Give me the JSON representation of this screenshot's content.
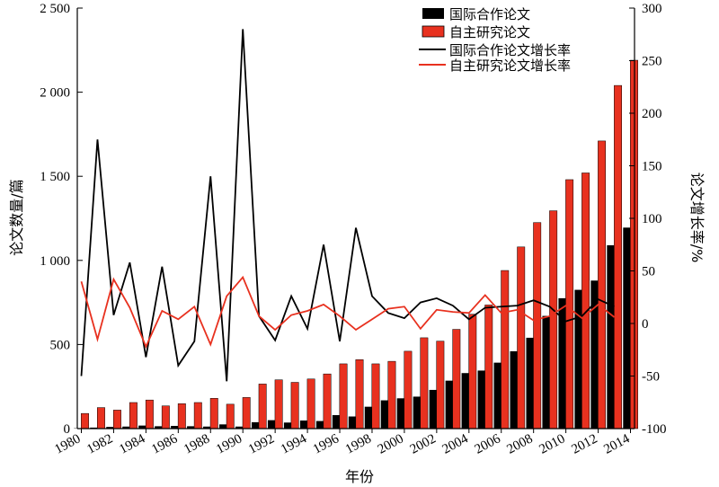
{
  "chart_data": {
    "type": "bar",
    "categories": [
      1980,
      1981,
      1982,
      1983,
      1984,
      1985,
      1986,
      1987,
      1988,
      1989,
      1990,
      1991,
      1992,
      1993,
      1994,
      1995,
      1996,
      1997,
      1998,
      1999,
      2000,
      2001,
      2002,
      2003,
      2004,
      2005,
      2006,
      2007,
      2008,
      2009,
      2010,
      2011,
      2012,
      2013,
      2014
    ],
    "x_tick_labels": [
      "1980",
      "1982",
      "1984",
      "1986",
      "1988",
      "1990",
      "1992",
      "1994",
      "1996",
      "1998",
      "2000",
      "2002",
      "2004",
      "2006",
      "2008",
      "2010",
      "2012",
      "2014"
    ],
    "xlabel": "年份",
    "ylabel_left": "论文数量/篇",
    "ylabel_right": "论文增长率/%",
    "ylim_left": [
      0,
      2500
    ],
    "ylim_right": [
      -100,
      300
    ],
    "y_left_ticks": [
      0,
      500,
      1000,
      1500,
      2000,
      2500
    ],
    "y_left_tick_labels": [
      "0",
      "500",
      "1 000",
      "1 500",
      "2 000",
      "2 500"
    ],
    "y_right_ticks": [
      -100,
      -50,
      0,
      50,
      100,
      150,
      200,
      250,
      300
    ],
    "y_right_tick_labels": [
      "-100",
      "-50",
      "0",
      "50",
      "100",
      "150",
      "200",
      "250",
      "300"
    ],
    "legend_position": "top-right",
    "series": [
      {
        "name": "国际合作论文",
        "kind": "bar",
        "axis": "left",
        "color": "#000000",
        "values": [
          2,
          6,
          10,
          12,
          18,
          14,
          16,
          14,
          12,
          25,
          12,
          38,
          50,
          36,
          48,
          45,
          80,
          72,
          130,
          168,
          180,
          190,
          230,
          285,
          330,
          345,
          392,
          460,
          540,
          670,
          775,
          825,
          880,
          1090,
          1195
        ]
      },
      {
        "name": "自主研究论文",
        "kind": "bar",
        "axis": "left",
        "color": "#e8311f",
        "values": [
          90,
          125,
          110,
          155,
          170,
          135,
          148,
          155,
          180,
          145,
          185,
          265,
          290,
          275,
          295,
          325,
          385,
          410,
          385,
          400,
          460,
          540,
          520,
          590,
          680,
          735,
          940,
          1080,
          1225,
          1295,
          1480,
          1520,
          1710,
          2040,
          2190
        ]
      },
      {
        "name": "国际合作论文增长率",
        "kind": "line",
        "axis": "right",
        "color": "#000000",
        "values": [
          -50,
          175,
          8,
          58,
          -32,
          54,
          -40,
          -17,
          140,
          -55,
          280,
          7,
          -16,
          26,
          -5,
          75,
          -17,
          91,
          26,
          10,
          5,
          20,
          24,
          17,
          4,
          15,
          16,
          17,
          22,
          16,
          2,
          7,
          23,
          16,
          null
        ]
      },
      {
        "name": "自主研究论文增长率",
        "kind": "line",
        "axis": "right",
        "color": "#e8311f",
        "values": [
          40,
          -15,
          42,
          15,
          -22,
          12,
          4,
          16,
          -20,
          26,
          44,
          7,
          -6,
          8,
          12,
          18,
          7,
          -6,
          4,
          14,
          16,
          -5,
          13,
          11,
          10,
          27,
          10,
          13,
          3,
          7,
          17,
          5,
          18,
          6,
          null
        ]
      }
    ]
  }
}
